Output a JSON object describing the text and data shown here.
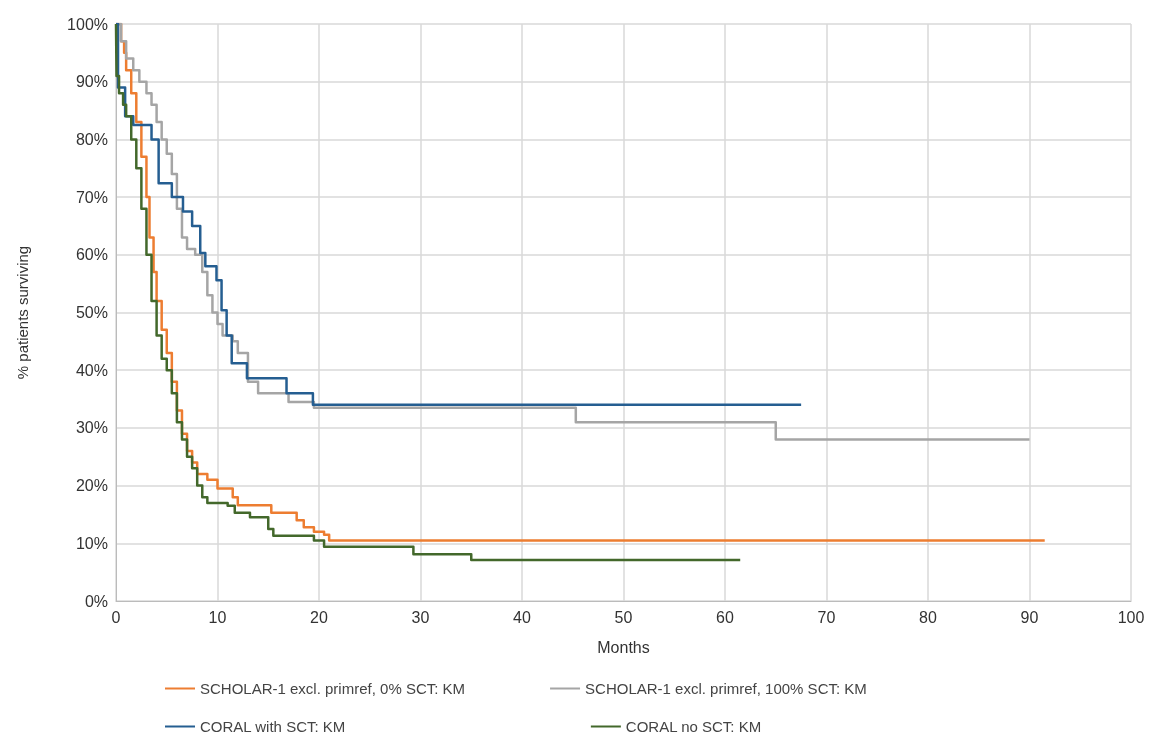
{
  "chart_data": {
    "type": "step",
    "xlabel": "Months",
    "ylabel": "% patients surviving",
    "xlim": [
      0,
      100
    ],
    "xticks": [
      0,
      10,
      20,
      30,
      40,
      50,
      60,
      70,
      80,
      90,
      100
    ],
    "ylim": [
      0,
      100
    ],
    "yticks": [
      {
        "value": 0,
        "label": "0%"
      },
      {
        "value": 10,
        "label": "10%"
      },
      {
        "value": 20,
        "label": "20%"
      },
      {
        "value": 30,
        "label": "30%"
      },
      {
        "value": 40,
        "label": "40%"
      },
      {
        "value": 50,
        "label": "50%"
      },
      {
        "value": 60,
        "label": "60%"
      },
      {
        "value": 70,
        "label": "70%"
      },
      {
        "value": 80,
        "label": "80%"
      },
      {
        "value": 90,
        "label": "90%"
      },
      {
        "value": 100,
        "label": "100%"
      }
    ],
    "grid": true,
    "legend": "bottom",
    "marker": "none",
    "line_style": "solid",
    "series": [
      {
        "name": "SCHOLAR-1 excl. primref, 0% SCT: KM",
        "color": "#ed7d31",
        "x": [
          0,
          0.5,
          0.8,
          1,
          1.5,
          2,
          2.5,
          3,
          3.3,
          3.7,
          4,
          4.5,
          5,
          5.5,
          6,
          6.5,
          7,
          7.5,
          8,
          9,
          10,
          11.5,
          12,
          15.3,
          17.8,
          18.5,
          19.5,
          20.5,
          21,
          91.5
        ],
        "values": [
          100,
          97,
          95,
          92,
          88,
          83,
          77,
          70,
          63,
          57,
          52,
          47,
          43,
          38,
          33,
          29,
          26,
          24,
          22,
          21,
          19.5,
          18,
          16.6,
          15.3,
          14,
          12.8,
          12,
          11.5,
          10.5,
          10.5
        ]
      },
      {
        "name": "SCHOLAR-1 excl. primref, 100% SCT: KM",
        "color": "#a5a5a5",
        "x": [
          0,
          0.5,
          1,
          1.7,
          2.3,
          3,
          3.5,
          4,
          4.5,
          5,
          5.5,
          6,
          6.5,
          7,
          7.8,
          8.5,
          9,
          9.5,
          10,
          10.5,
          11.5,
          12,
          13,
          14,
          17,
          19.5,
          45.3,
          65,
          90
        ],
        "values": [
          100,
          97,
          94,
          92,
          90,
          88,
          86,
          83,
          80,
          77.5,
          74,
          68,
          63,
          61,
          60,
          57,
          53,
          50,
          48,
          46,
          45,
          43,
          38,
          36,
          34.5,
          33.5,
          31,
          28,
          28
        ]
      },
      {
        "name": "CORAL with SCT: KM",
        "color": "#255e91",
        "x": [
          0,
          0.2,
          0.9,
          1.7,
          3.5,
          4.2,
          5.5,
          6.6,
          7.5,
          8.3,
          8.8,
          9.9,
          10.4,
          10.9,
          11.4,
          12.9,
          16.8,
          19.4,
          67.5
        ],
        "values": [
          100,
          89,
          84,
          82.5,
          80,
          72.4,
          70,
          67.5,
          65,
          60.3,
          58,
          55.6,
          50.4,
          46,
          41.2,
          38.6,
          36,
          34,
          34
        ]
      },
      {
        "name": "CORAL no SCT: KM",
        "color": "#43682b",
        "x": [
          0,
          0.05,
          0.3,
          0.7,
          1,
          1.5,
          2,
          2.5,
          3,
          3.5,
          4,
          4.5,
          5,
          5.5,
          6,
          6.5,
          7,
          7.5,
          8,
          8.5,
          9,
          11,
          11.7,
          13.2,
          15,
          15.5,
          19.5,
          20.5,
          29.3,
          35,
          61.5
        ],
        "values": [
          100,
          91,
          88,
          86,
          84,
          80,
          75,
          68,
          60,
          52,
          46,
          42,
          40,
          36,
          31,
          28,
          25,
          23,
          20,
          18,
          17,
          16.5,
          15.3,
          14.5,
          12.5,
          11.3,
          10.5,
          9.4,
          8.1,
          7.1,
          7.1
        ]
      }
    ]
  }
}
